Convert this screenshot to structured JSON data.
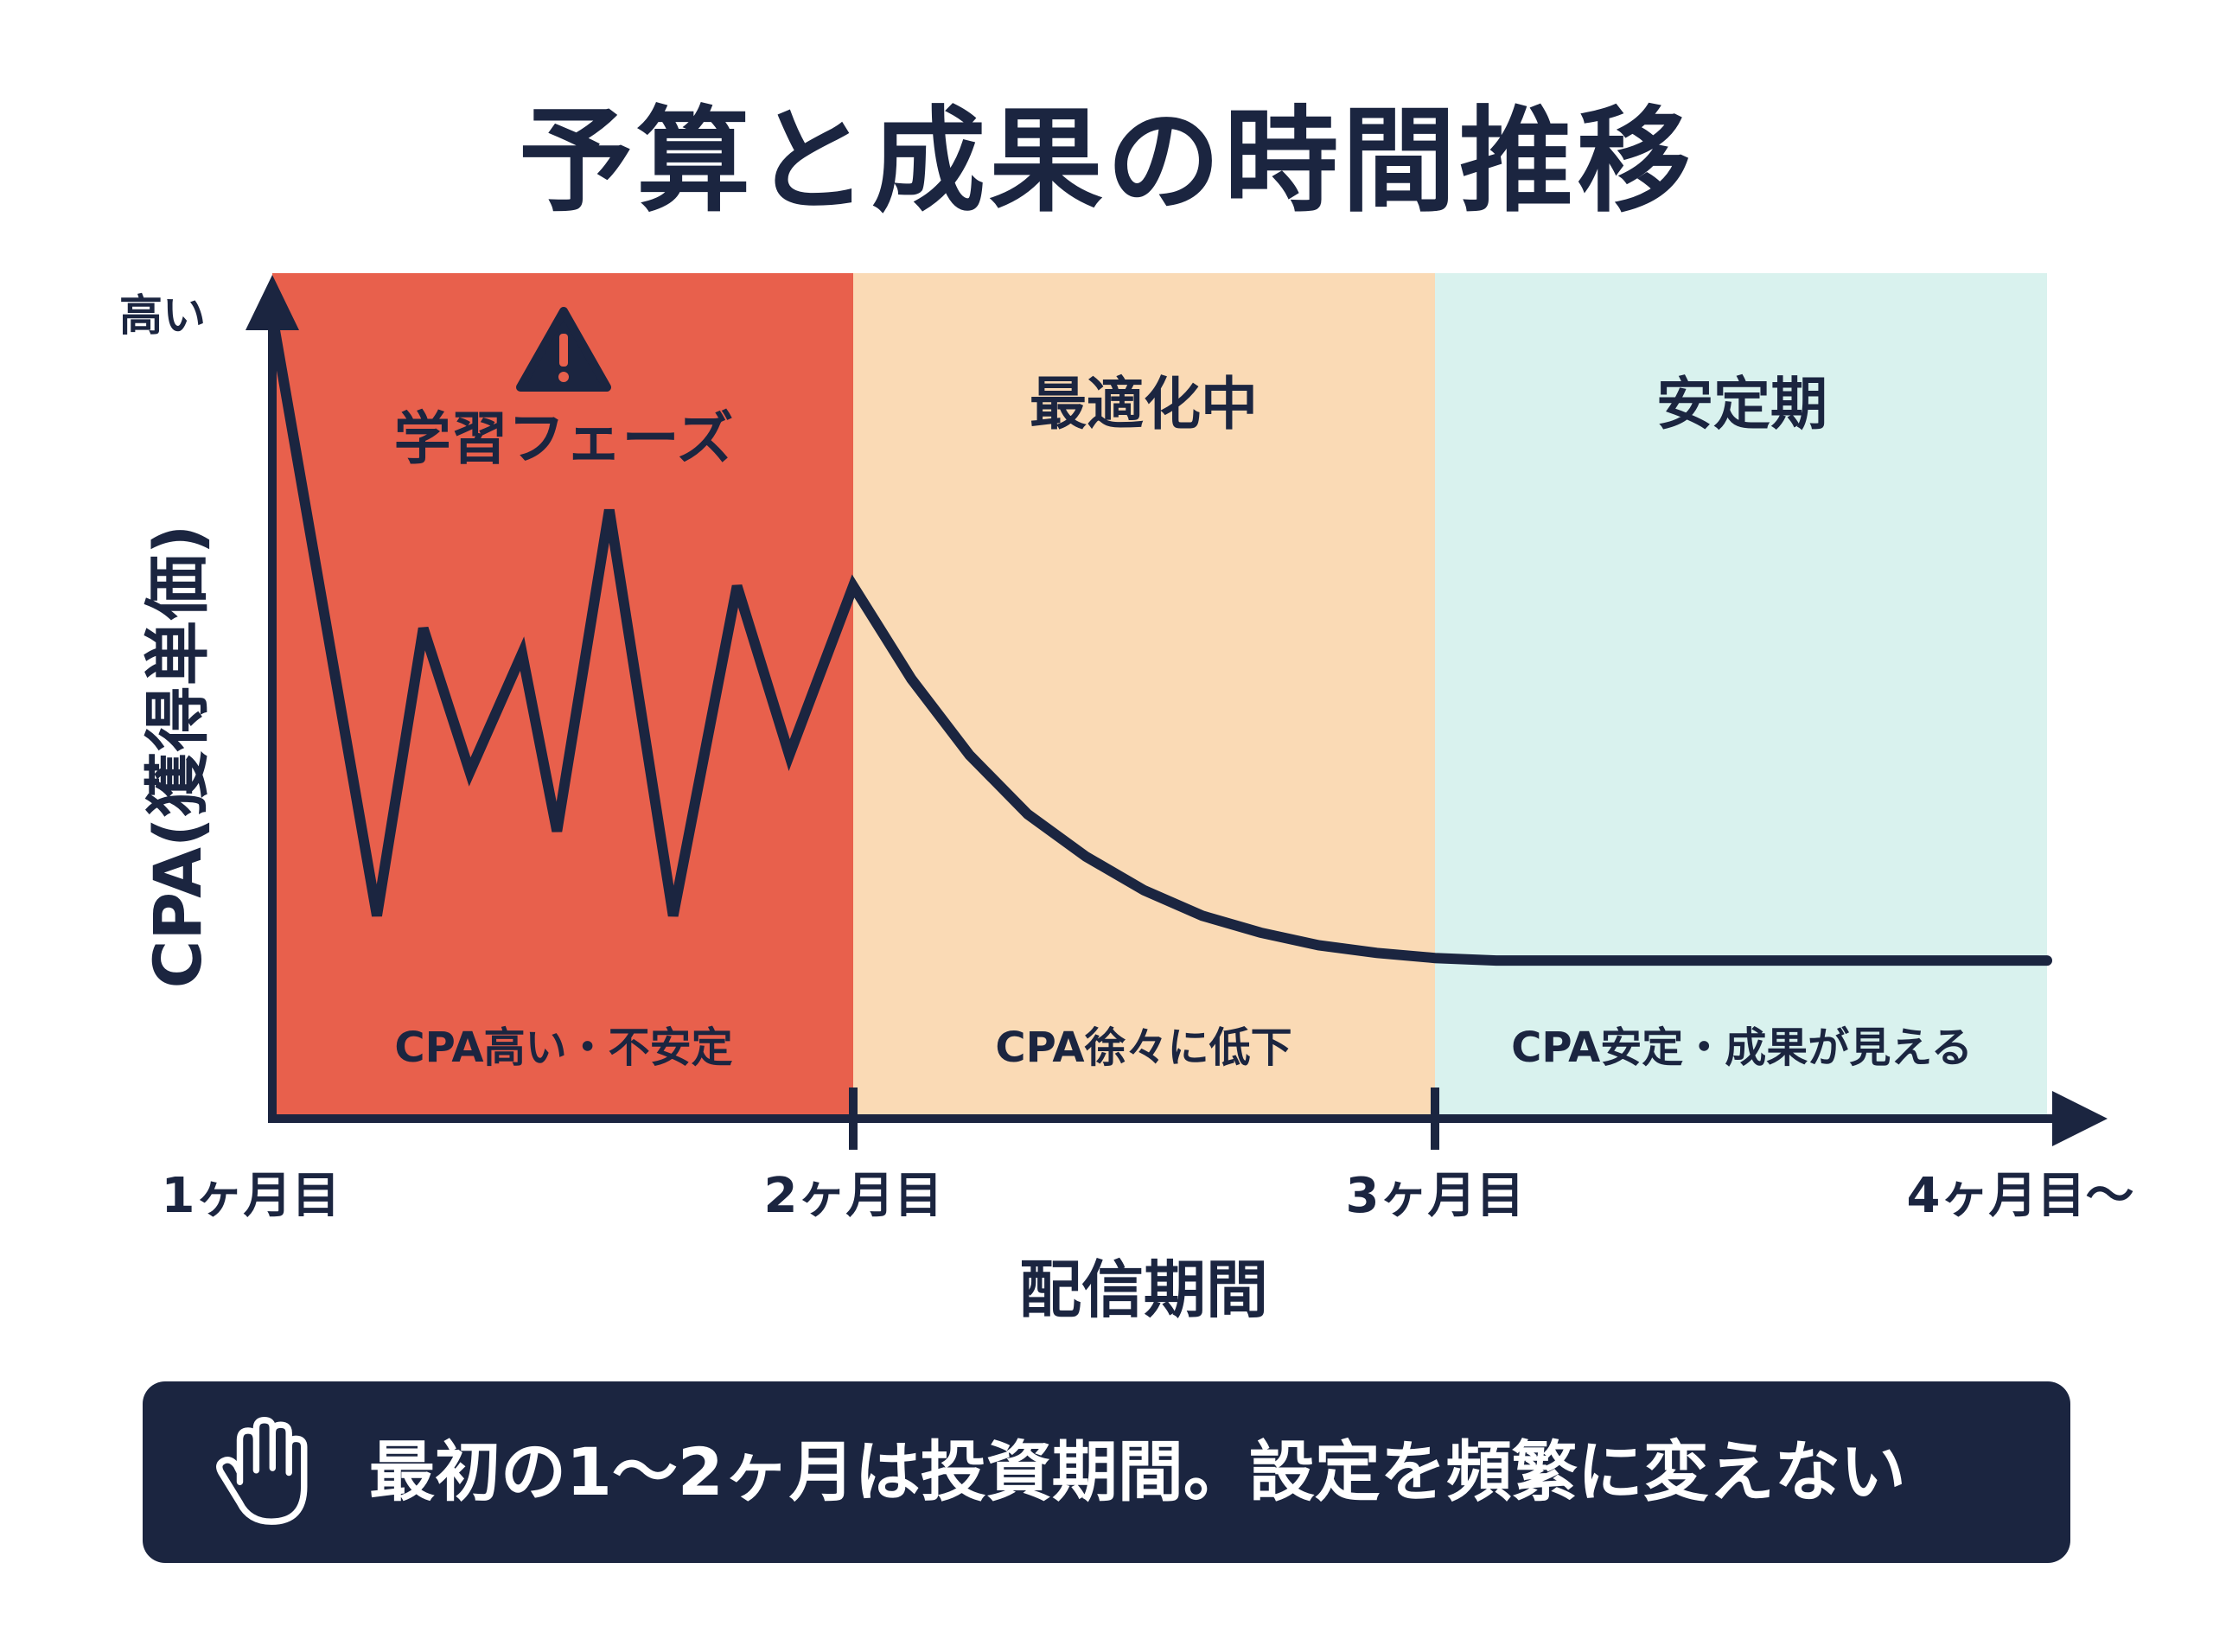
{
  "title": "予算と成果の時間推移",
  "y_axis": {
    "label": "CPA(獲得単価)",
    "high_label": "高い"
  },
  "x_axis": {
    "label": "配信期間",
    "ticks": [
      "1ヶ月目",
      "2ヶ月目",
      "3ヶ月目",
      "4ヶ月目〜"
    ]
  },
  "phases": [
    {
      "name": "学習フェーズ",
      "note": "CPA高い・不安定",
      "color": "#e8604c",
      "icon": "warning-icon"
    },
    {
      "name": "最適化中",
      "note": "CPA徐々に低下",
      "color": "#fadab5"
    },
    {
      "name": "安定期",
      "note": "CPA安定・成果が見える",
      "color": "#d9f2ee"
    }
  ],
  "colors": {
    "navy": "#1b2540",
    "warning_red": "#e8604c"
  },
  "banner": {
    "text": "最初の1〜2ヶ月は投資期間。設定を頻繁に変えない",
    "icon": "hand-icon"
  },
  "chart_data": {
    "type": "line",
    "xlabel": "配信期間",
    "ylabel": "CPA(獲得単価)",
    "categories": [
      "1ヶ月目",
      "2ヶ月目",
      "3ヶ月目",
      "4ヶ月目〜"
    ],
    "xlim": [
      1,
      4
    ],
    "ylim": [
      0,
      100
    ],
    "series": [
      {
        "points": [
          [
            1.0,
            95
          ],
          [
            1.18,
            24
          ],
          [
            1.26,
            58
          ],
          [
            1.34,
            41
          ],
          [
            1.43,
            55
          ],
          [
            1.49,
            34
          ],
          [
            1.58,
            72
          ],
          [
            1.69,
            24
          ],
          [
            1.8,
            63
          ],
          [
            1.89,
            43
          ],
          [
            2.0,
            63
          ],
          [
            2.1,
            52
          ],
          [
            2.2,
            43
          ],
          [
            2.3,
            36
          ],
          [
            2.4,
            31
          ],
          [
            2.5,
            27
          ],
          [
            2.6,
            24
          ],
          [
            2.7,
            22
          ],
          [
            2.8,
            20.5
          ],
          [
            2.9,
            19.6
          ],
          [
            3.0,
            19
          ],
          [
            3.1,
            18.7
          ],
          [
            4.0,
            18.7
          ]
        ]
      }
    ]
  }
}
